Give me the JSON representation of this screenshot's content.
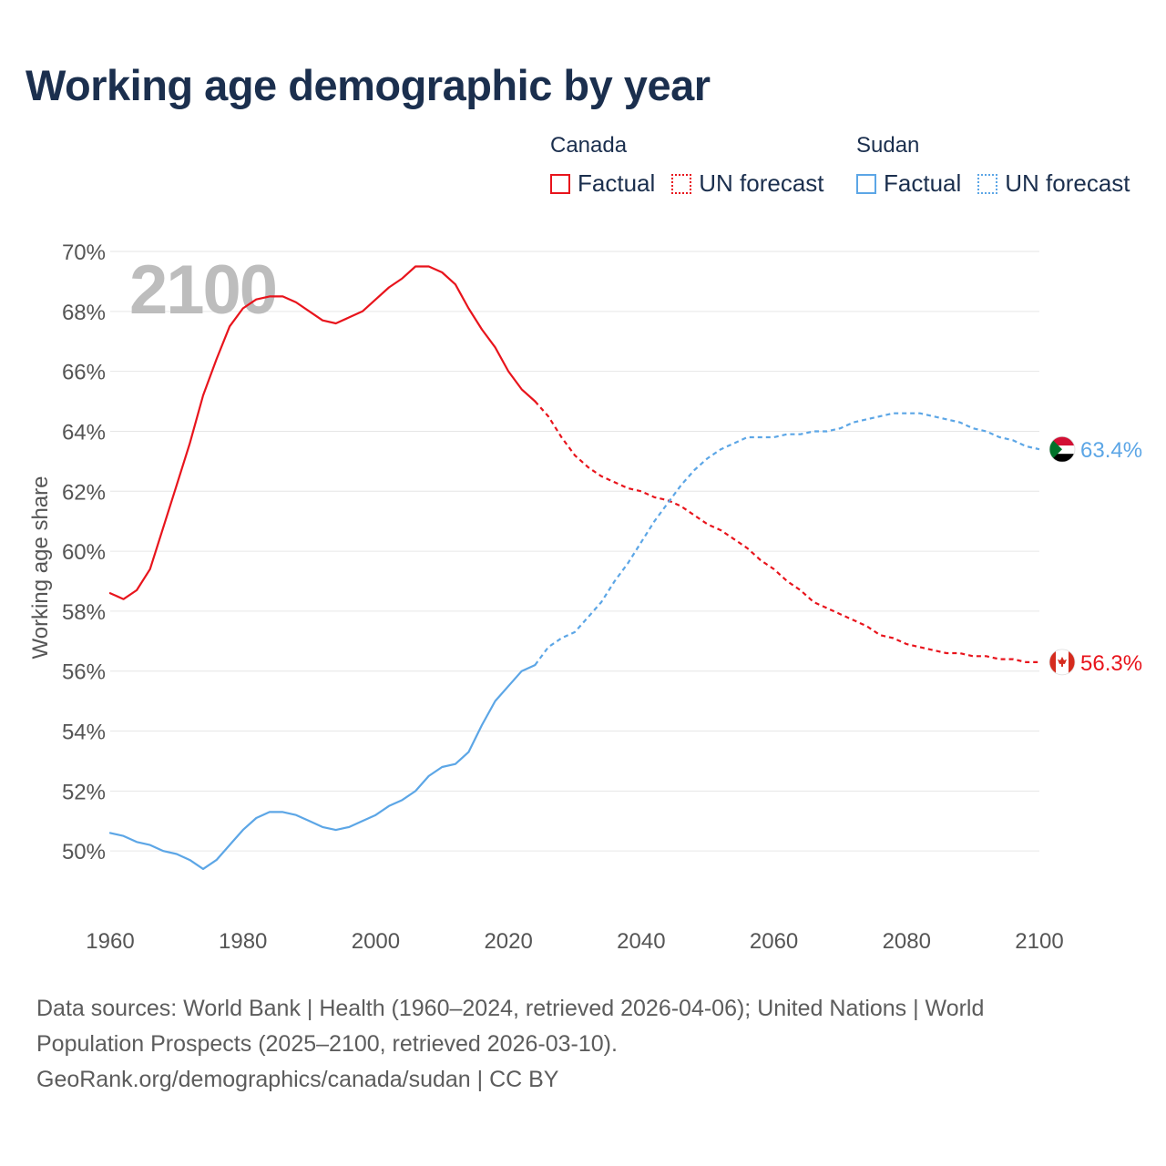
{
  "title": "Working age demographic by year",
  "legend": {
    "groups": [
      {
        "name": "Canada",
        "factual_label": "Factual",
        "forecast_label": "UN forecast",
        "color": "#e8141c"
      },
      {
        "name": "Sudan",
        "factual_label": "Factual",
        "forecast_label": "UN forecast",
        "color": "#5ca6e6"
      }
    ]
  },
  "colors": {
    "canada": "#e8141c",
    "sudan": "#5ca6e6",
    "title": "#1b2f4e",
    "axis_text": "#555555",
    "grid": "#e6e6e6",
    "year_watermark": "#bdbdbd"
  },
  "year_watermark": "2100",
  "footer": {
    "line1": "Data sources: World Bank | Health (1960–2024, retrieved 2026-04-06); United Nations | World",
    "line2": "Population Prospects (2025–2100, retrieved 2026-03-10).",
    "line3": "GeoRank.org/demographics/canada/sudan | CC BY"
  },
  "chart_data": {
    "type": "line",
    "title": "Working age demographic by year",
    "xlabel": "",
    "ylabel": "Working age share",
    "xlim": [
      1960,
      2100
    ],
    "ylim": [
      48,
      70
    ],
    "x_ticks": [
      1960,
      1980,
      2000,
      2020,
      2040,
      2060,
      2080,
      2100
    ],
    "x_tick_labels": [
      "1960",
      "1980",
      "2000",
      "2020",
      "2040",
      "2060",
      "2080",
      "2100"
    ],
    "y_ticks": [
      50,
      52,
      54,
      56,
      58,
      60,
      62,
      64,
      66,
      68,
      70
    ],
    "y_tick_labels": [
      "50%",
      "52%",
      "54%",
      "56%",
      "58%",
      "60%",
      "62%",
      "64%",
      "66%",
      "68%",
      "70%"
    ],
    "grid": true,
    "factual_range": [
      1960,
      2024
    ],
    "forecast_range": [
      2025,
      2100
    ],
    "series": [
      {
        "name": "Canada",
        "end_label": "56.3%",
        "flag": "canada-flag-icon",
        "points": [
          [
            1960,
            58.6
          ],
          [
            1962,
            58.4
          ],
          [
            1964,
            58.7
          ],
          [
            1966,
            59.4
          ],
          [
            1968,
            60.8
          ],
          [
            1970,
            62.2
          ],
          [
            1972,
            63.6
          ],
          [
            1974,
            65.2
          ],
          [
            1976,
            66.4
          ],
          [
            1978,
            67.5
          ],
          [
            1980,
            68.1
          ],
          [
            1982,
            68.4
          ],
          [
            1984,
            68.5
          ],
          [
            1986,
            68.5
          ],
          [
            1988,
            68.3
          ],
          [
            1990,
            68.0
          ],
          [
            1992,
            67.7
          ],
          [
            1994,
            67.6
          ],
          [
            1996,
            67.8
          ],
          [
            1998,
            68.0
          ],
          [
            2000,
            68.4
          ],
          [
            2002,
            68.8
          ],
          [
            2004,
            69.1
          ],
          [
            2006,
            69.5
          ],
          [
            2008,
            69.5
          ],
          [
            2010,
            69.3
          ],
          [
            2012,
            68.9
          ],
          [
            2014,
            68.1
          ],
          [
            2016,
            67.4
          ],
          [
            2018,
            66.8
          ],
          [
            2020,
            66.0
          ],
          [
            2022,
            65.4
          ],
          [
            2024,
            65.0
          ],
          [
            2026,
            64.5
          ],
          [
            2028,
            63.8
          ],
          [
            2030,
            63.2
          ],
          [
            2032,
            62.8
          ],
          [
            2034,
            62.5
          ],
          [
            2036,
            62.3
          ],
          [
            2038,
            62.1
          ],
          [
            2040,
            62.0
          ],
          [
            2042,
            61.8
          ],
          [
            2044,
            61.7
          ],
          [
            2046,
            61.5
          ],
          [
            2048,
            61.2
          ],
          [
            2050,
            60.9
          ],
          [
            2052,
            60.7
          ],
          [
            2054,
            60.4
          ],
          [
            2056,
            60.1
          ],
          [
            2058,
            59.7
          ],
          [
            2060,
            59.4
          ],
          [
            2062,
            59.0
          ],
          [
            2064,
            58.7
          ],
          [
            2066,
            58.3
          ],
          [
            2068,
            58.1
          ],
          [
            2070,
            57.9
          ],
          [
            2072,
            57.7
          ],
          [
            2074,
            57.5
          ],
          [
            2076,
            57.2
          ],
          [
            2078,
            57.1
          ],
          [
            2080,
            56.9
          ],
          [
            2082,
            56.8
          ],
          [
            2084,
            56.7
          ],
          [
            2086,
            56.6
          ],
          [
            2088,
            56.6
          ],
          [
            2090,
            56.5
          ],
          [
            2092,
            56.5
          ],
          [
            2094,
            56.4
          ],
          [
            2096,
            56.4
          ],
          [
            2098,
            56.3
          ],
          [
            2100,
            56.3
          ]
        ]
      },
      {
        "name": "Sudan",
        "end_label": "63.4%",
        "flag": "sudan-flag-icon",
        "points": [
          [
            1960,
            50.6
          ],
          [
            1962,
            50.5
          ],
          [
            1964,
            50.3
          ],
          [
            1966,
            50.2
          ],
          [
            1968,
            50.0
          ],
          [
            1970,
            49.9
          ],
          [
            1972,
            49.7
          ],
          [
            1974,
            49.4
          ],
          [
            1976,
            49.7
          ],
          [
            1978,
            50.2
          ],
          [
            1980,
            50.7
          ],
          [
            1982,
            51.1
          ],
          [
            1984,
            51.3
          ],
          [
            1986,
            51.3
          ],
          [
            1988,
            51.2
          ],
          [
            1990,
            51.0
          ],
          [
            1992,
            50.8
          ],
          [
            1994,
            50.7
          ],
          [
            1996,
            50.8
          ],
          [
            1998,
            51.0
          ],
          [
            2000,
            51.2
          ],
          [
            2002,
            51.5
          ],
          [
            2004,
            51.7
          ],
          [
            2006,
            52.0
          ],
          [
            2008,
            52.5
          ],
          [
            2010,
            52.8
          ],
          [
            2012,
            52.9
          ],
          [
            2014,
            53.3
          ],
          [
            2016,
            54.2
          ],
          [
            2018,
            55.0
          ],
          [
            2020,
            55.5
          ],
          [
            2022,
            56.0
          ],
          [
            2024,
            56.2
          ],
          [
            2026,
            56.8
          ],
          [
            2028,
            57.1
          ],
          [
            2030,
            57.3
          ],
          [
            2032,
            57.8
          ],
          [
            2034,
            58.3
          ],
          [
            2036,
            59.0
          ],
          [
            2038,
            59.6
          ],
          [
            2040,
            60.3
          ],
          [
            2042,
            61.0
          ],
          [
            2044,
            61.6
          ],
          [
            2046,
            62.2
          ],
          [
            2048,
            62.7
          ],
          [
            2050,
            63.1
          ],
          [
            2052,
            63.4
          ],
          [
            2054,
            63.6
          ],
          [
            2056,
            63.8
          ],
          [
            2058,
            63.8
          ],
          [
            2060,
            63.8
          ],
          [
            2062,
            63.9
          ],
          [
            2064,
            63.9
          ],
          [
            2066,
            64.0
          ],
          [
            2068,
            64.0
          ],
          [
            2070,
            64.1
          ],
          [
            2072,
            64.3
          ],
          [
            2074,
            64.4
          ],
          [
            2076,
            64.5
          ],
          [
            2078,
            64.6
          ],
          [
            2080,
            64.6
          ],
          [
            2082,
            64.6
          ],
          [
            2084,
            64.5
          ],
          [
            2086,
            64.4
          ],
          [
            2088,
            64.3
          ],
          [
            2090,
            64.1
          ],
          [
            2092,
            64.0
          ],
          [
            2094,
            63.8
          ],
          [
            2096,
            63.7
          ],
          [
            2098,
            63.5
          ],
          [
            2100,
            63.4
          ]
        ]
      }
    ]
  }
}
